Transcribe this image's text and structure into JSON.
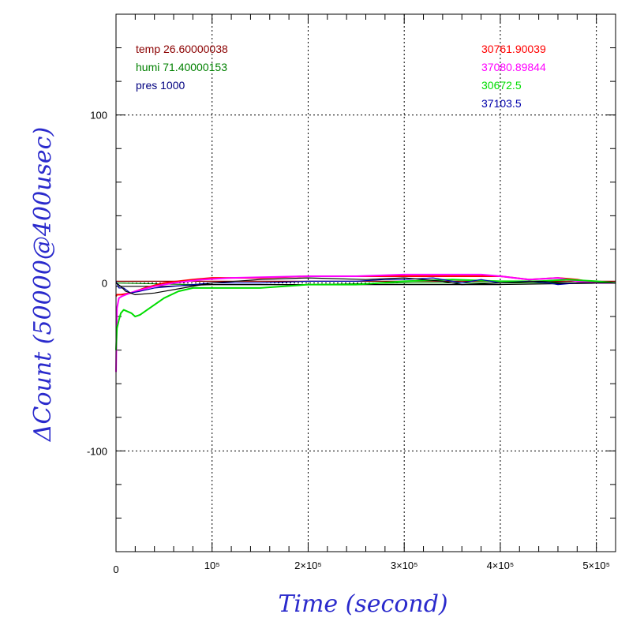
{
  "chart_data": {
    "type": "line",
    "xlabel": "Time (second)",
    "ylabel": "ΔCount (50000@400usec)",
    "xlim": [
      0,
      520000
    ],
    "ylim": [
      -160,
      160
    ],
    "x_ticks": [
      {
        "value": 0,
        "label": "0"
      },
      {
        "value": 100000,
        "label": "10⁵"
      },
      {
        "value": 200000,
        "label": "2×10⁵"
      },
      {
        "value": 300000,
        "label": "3×10⁵"
      },
      {
        "value": 400000,
        "label": "4×10⁵"
      },
      {
        "value": 500000,
        "label": "5×10⁵"
      }
    ],
    "y_ticks": [
      {
        "value": 100,
        "label": "100"
      },
      {
        "value": 0,
        "label": "0"
      },
      {
        "value": -100,
        "label": "-100"
      }
    ],
    "grid": true,
    "legend_left": [
      {
        "text": "temp 26.60000038",
        "color": "#8b0000"
      },
      {
        "text": "humi 71.40000153",
        "color": "#008000"
      },
      {
        "text": "pres 1000",
        "color": "#000080"
      }
    ],
    "legend_right": [
      {
        "text": "30761.90039",
        "color": "#ff0000"
      },
      {
        "text": "37080.89844",
        "color": "#ff00ff"
      },
      {
        "text": "30672.5",
        "color": "#00ee00"
      },
      {
        "text": "37103.5",
        "color": "#0000aa"
      }
    ],
    "series": [
      {
        "color": "#8b0000",
        "x": [
          0,
          520000
        ],
        "y": [
          1,
          1
        ]
      },
      {
        "color": "#008000",
        "x": [
          0,
          80000,
          200000,
          300000,
          400000,
          520000
        ],
        "y": [
          0,
          -1,
          -1,
          0,
          0,
          0
        ]
      },
      {
        "color": "#000000",
        "x": [
          0,
          50000,
          100000,
          200000,
          300000,
          400000,
          520000
        ],
        "y": [
          -2,
          -2,
          -1,
          -1,
          -1,
          -1,
          0
        ]
      },
      {
        "color": "#ff0000",
        "x": [
          0,
          1000,
          5000,
          15000,
          30000,
          50000,
          80000,
          100000,
          150000,
          200000,
          250000,
          300000,
          350000,
          400000,
          430000,
          460000,
          480000,
          500000,
          520000
        ],
        "y": [
          -8,
          -7,
          -7,
          -6,
          -3,
          0,
          2,
          3,
          3,
          4,
          4,
          4,
          4,
          4,
          2,
          3,
          2,
          0,
          0
        ]
      },
      {
        "color": "#ff00ff",
        "x": [
          0,
          1000,
          3000,
          6000,
          10000,
          20000,
          40000,
          60000,
          90000,
          120000,
          200000,
          250000,
          300000,
          350000,
          380000,
          400000,
          430000,
          460000,
          480000,
          500000,
          520000
        ],
        "y": [
          -53,
          -15,
          -9,
          -8,
          -7,
          -5,
          -2,
          0,
          2,
          3,
          4,
          4,
          5,
          5,
          5,
          4,
          2,
          3,
          1,
          0,
          0
        ]
      },
      {
        "color": "#00dd00",
        "x": [
          0,
          1000,
          3000,
          5000,
          8000,
          12000,
          16000,
          20000,
          25000,
          30000,
          40000,
          50000,
          65000,
          80000,
          100000,
          150000,
          200000,
          250000,
          300000,
          350000,
          400000,
          440000,
          470000,
          500000,
          520000
        ],
        "y": [
          -40,
          -27,
          -22,
          -18,
          -16,
          -17,
          -18,
          -20,
          -19,
          -17,
          -13,
          -9,
          -5,
          -3,
          -3,
          -3,
          -1,
          -1,
          1,
          2,
          1,
          1,
          2,
          1,
          0
        ]
      },
      {
        "color": "#0000aa",
        "x": [
          0,
          3000,
          8000,
          15000,
          25000,
          40000,
          60000,
          80000,
          100000,
          150000,
          200000,
          250000,
          280000,
          300000,
          330000,
          360000,
          380000,
          400000,
          430000,
          450000,
          460000,
          480000,
          500000,
          520000
        ],
        "y": [
          1,
          -3,
          -3,
          -6,
          -5,
          -3,
          -2,
          -1,
          0,
          0,
          1,
          1,
          2,
          2,
          3,
          0,
          2,
          0,
          1,
          0,
          -1,
          0,
          0,
          0
        ]
      },
      {
        "color": "#000000",
        "x": [
          0,
          5000,
          10000,
          20000,
          40000,
          70000,
          100000,
          150000,
          200000,
          260000,
          300000,
          340000,
          360000,
          400000,
          440000,
          470000,
          500000,
          520000
        ],
        "y": [
          0,
          -2,
          -5,
          -7,
          -6,
          -3,
          0,
          2,
          3,
          2,
          3,
          1,
          -1,
          0,
          1,
          0,
          0,
          0
        ]
      }
    ]
  }
}
